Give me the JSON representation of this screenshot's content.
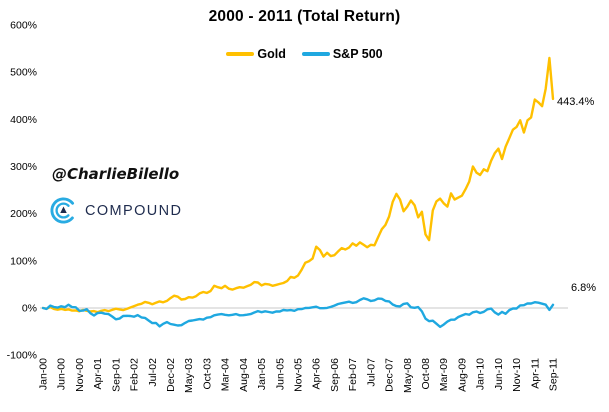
{
  "title": "2000 - 2011 (Total Return)",
  "watermark": {
    "handle": "@CharlieBilello",
    "brand": "COMPOUND"
  },
  "colors": {
    "gold_line": "#FFC000",
    "sp500_line": "#1FA8E0",
    "brand_navy": "#1F2C4E",
    "brand_cyan": "#29ABE2",
    "zero_gridline": "#C9C9C9"
  },
  "chart_data": {
    "type": "line",
    "title": "2000 - 2011 (Total Return)",
    "x_unit": "month",
    "x_range": [
      "Jan-00",
      "Sep-11"
    ],
    "x_tick_labels": [
      "Jan-00",
      "Jun-00",
      "Nov-00",
      "Apr-01",
      "Sep-01",
      "Feb-02",
      "Jul-02",
      "Dec-02",
      "May-03",
      "Oct-03",
      "Mar-04",
      "Aug-04",
      "Jan-05",
      "Jun-05",
      "Nov-05",
      "Apr-06",
      "Sep-06",
      "Feb-07",
      "Jul-07",
      "Dec-07",
      "May-08",
      "Oct-08",
      "Mar-09",
      "Aug-09",
      "Jan-10",
      "Jun-10",
      "Nov-10",
      "Apr-11",
      "Sep-11"
    ],
    "x_tick_step_months": 5,
    "y_ticks": [
      600,
      500,
      400,
      300,
      200,
      100,
      0,
      -100
    ],
    "y_tick_suffix": "%",
    "ylim": [
      -100,
      600
    ],
    "gridline_at": 0,
    "legend_position": "top-center",
    "series": [
      {
        "name": "Gold",
        "color": "#FFC000",
        "end_label": "443.4%",
        "values": [
          0,
          -1.5,
          2,
          -2,
          -3.5,
          -2,
          -4,
          -3,
          -5.5,
          -5,
          -7,
          -4,
          -6,
          -7.5,
          -6.5,
          -9,
          -6,
          -4.5,
          -6.5,
          -4,
          -1.5,
          -3,
          -4.5,
          -2,
          1,
          4,
          7,
          9,
          13,
          11,
          8,
          11,
          14,
          12,
          15,
          21,
          26,
          24,
          18,
          19,
          23,
          22,
          25,
          31,
          34,
          32,
          36,
          47,
          44,
          42,
          47,
          41,
          39,
          42,
          44,
          43,
          46,
          49,
          55,
          54,
          48,
          51,
          50,
          47,
          49,
          51,
          53,
          57,
          66,
          64,
          69,
          81,
          96,
          99,
          105,
          130,
          123,
          109,
          117,
          110,
          112,
          120,
          127,
          124,
          128,
          137,
          132,
          139,
          134,
          129,
          134,
          133,
          150,
          167,
          176,
          194,
          225,
          242,
          230,
          205,
          215,
          228,
          218,
          192,
          204,
          156,
          144,
          207,
          226,
          232,
          222,
          215,
          243,
          230,
          234,
          238,
          252,
          268,
          300,
          287,
          282,
          294,
          290,
          312,
          328,
          338,
          316,
          342,
          360,
          378,
          384,
          398,
          372,
          398,
          404,
          442,
          436,
          428,
          465,
          530,
          443.4
        ]
      },
      {
        "name": "S&P 500",
        "color": "#1FA8E0",
        "end_label": "6.8%",
        "values": [
          0,
          -1.9,
          5,
          2.2,
          0.8,
          3.5,
          1.8,
          7,
          2,
          1.5,
          -6,
          -5.5,
          -2.5,
          -11,
          -16,
          -10.5,
          -10,
          -12,
          -13,
          -18,
          -24,
          -22.5,
          -17,
          -16.5,
          -17,
          -18.5,
          -15,
          -20,
          -21,
          -26.5,
          -32,
          -31.5,
          -39,
          -33.5,
          -30,
          -34,
          -35.5,
          -37,
          -36.5,
          -31.5,
          -27.5,
          -26.5,
          -25,
          -23.5,
          -24.5,
          -20.5,
          -19.5,
          -15.5,
          -14,
          -13,
          -14.5,
          -15.5,
          -14.5,
          -13,
          -15.5,
          -15.3,
          -14.2,
          -13,
          -9.5,
          -6.5,
          -8.8,
          -7,
          -8.5,
          -10,
          -7.5,
          -7.4,
          -4.2,
          -5,
          -4.5,
          -6,
          -2.5,
          -2.4,
          0,
          0.3,
          1.5,
          2.7,
          -0.5,
          -0.4,
          0.2,
          2.4,
          5,
          8.4,
          10.2,
          11.8,
          13.4,
          10.9,
          12.2,
          17,
          20.5,
          18.5,
          14.9,
          16.4,
          20,
          19.5,
          15,
          14,
          7.5,
          4,
          3.4,
          8.6,
          10,
          1.5,
          0.4,
          1.9,
          -7.3,
          -22.5,
          -27.9,
          -27,
          -33.2,
          -40,
          -35.1,
          -28.9,
          -24.9,
          -24.7,
          -19.1,
          -16,
          -12.7,
          -14.3,
          -9.2,
          -7.5,
          -10.7,
          -8,
          -2.7,
          -1.3,
          -9.2,
          -14,
          -8.2,
          -12.2,
          -4.5,
          -1.1,
          -1.1,
          5.6,
          6,
          9.8,
          9.5,
          12.4,
          11.2,
          9.1,
          7,
          -4,
          6.8
        ]
      }
    ]
  }
}
